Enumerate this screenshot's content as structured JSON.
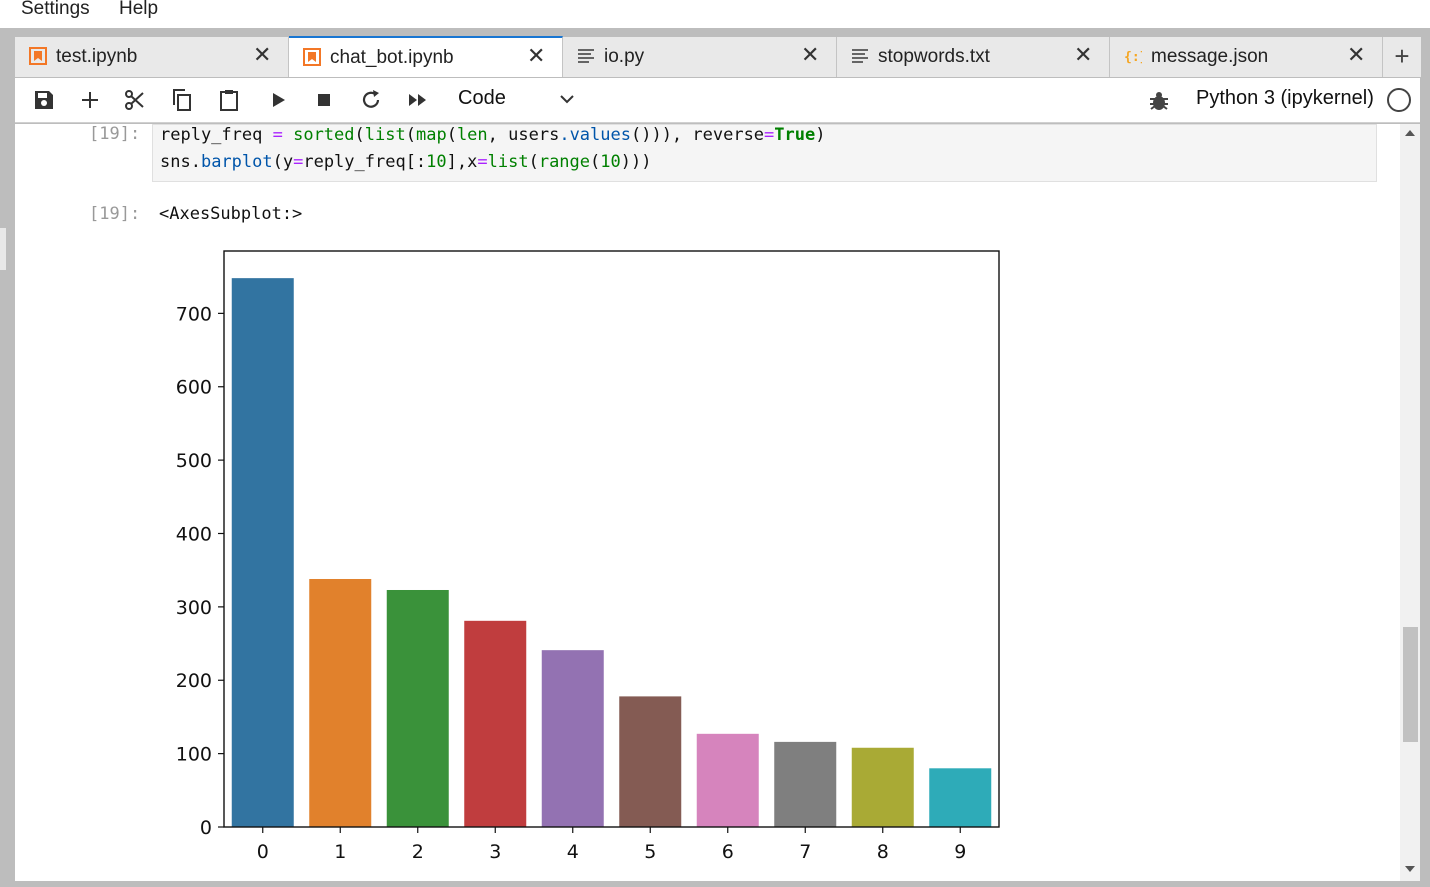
{
  "menu": {
    "items": [
      "Settings",
      "Help"
    ]
  },
  "tabs": [
    {
      "label": "test.ipynb",
      "icon": "notebook-icon",
      "active": false
    },
    {
      "label": "chat_bot.ipynb",
      "icon": "notebook-icon",
      "active": true
    },
    {
      "label": "io.py",
      "icon": "text-file-icon",
      "active": false
    },
    {
      "label": "stopwords.txt",
      "icon": "text-file-icon",
      "active": false
    },
    {
      "label": "message.json",
      "icon": "json-file-icon",
      "active": false
    }
  ],
  "toolbar": {
    "cell_type": "Code",
    "kernel_name": "Python 3 (ipykernel)",
    "icons": [
      "save-icon",
      "add-cell-icon",
      "cut-icon",
      "copy-icon",
      "paste-icon",
      "run-icon",
      "stop-icon",
      "restart-icon",
      "fast-forward-icon"
    ]
  },
  "cell": {
    "input_prompt": "[19]:",
    "output_prompt": "[19]:",
    "output_text": "<AxesSubplot:>"
  },
  "colors": {
    "accent": "#1976d2",
    "notebook_icon": "#f37726",
    "json_icon": "#f5a623"
  },
  "chart_data": {
    "type": "bar",
    "categories": [
      "0",
      "1",
      "2",
      "3",
      "4",
      "5",
      "6",
      "7",
      "8",
      "9"
    ],
    "values": [
      748,
      338,
      323,
      281,
      241,
      178,
      127,
      116,
      108,
      80
    ],
    "colors": [
      "#3274a1",
      "#e1812c",
      "#3a923a",
      "#c03d3e",
      "#9372b2",
      "#845b53",
      "#d684bd",
      "#7f7f7f",
      "#a9aa35",
      "#2eabb8"
    ],
    "yticks": [
      0,
      100,
      200,
      300,
      400,
      500,
      600,
      700
    ],
    "ylim": [
      0,
      785
    ],
    "title": "",
    "xlabel": "",
    "ylabel": ""
  }
}
